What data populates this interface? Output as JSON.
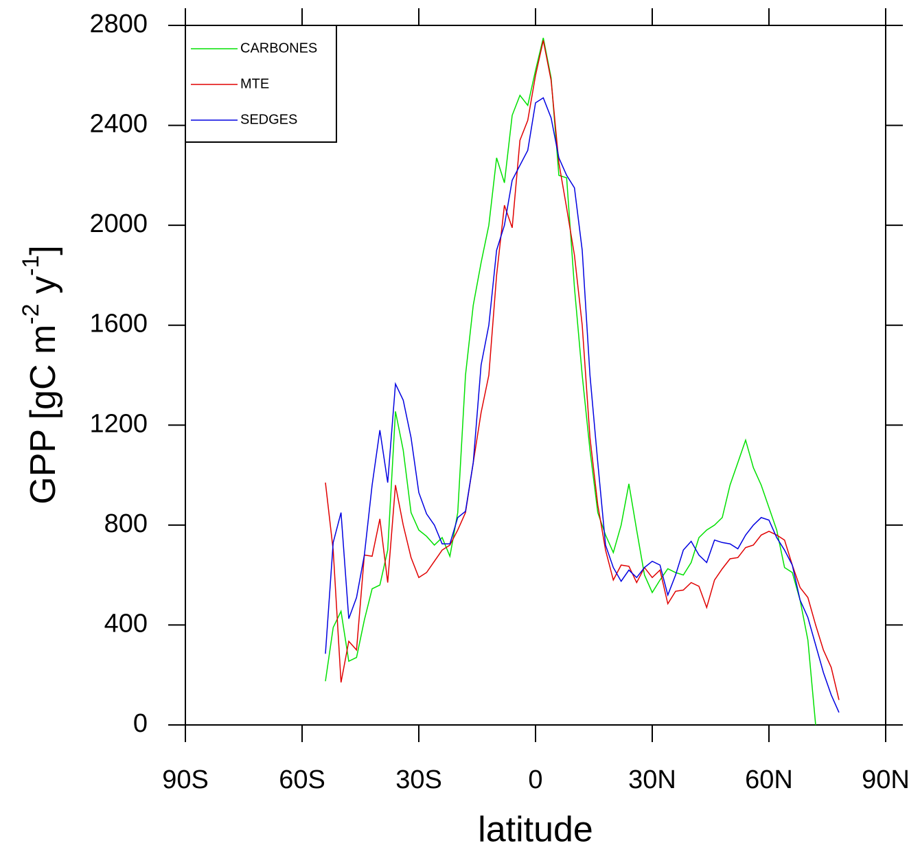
{
  "chart_data": {
    "type": "line",
    "x_label": "latitude",
    "y_label": [
      "GPP [gC m",
      "-2",
      " y",
      "-1",
      "]"
    ],
    "x": [
      -54,
      -52,
      -50,
      -48,
      -46,
      -44,
      -42,
      -40,
      -38,
      -36,
      -34,
      -32,
      -30,
      -28,
      -26,
      -24,
      -22,
      -20,
      -18,
      -16,
      -14,
      -12,
      -10,
      -8,
      -6,
      -4,
      -2,
      0,
      2,
      4,
      6,
      8,
      10,
      12,
      14,
      16,
      18,
      20,
      22,
      24,
      26,
      28,
      30,
      32,
      34,
      36,
      38,
      40,
      42,
      44,
      46,
      48,
      50,
      52,
      54,
      56,
      58,
      60,
      62,
      64,
      66,
      68,
      70,
      72,
      74,
      76,
      78
    ],
    "series": [
      {
        "name": "CARBONES",
        "color": "#00e000",
        "values": [
          175,
          390,
          455,
          255,
          270,
          420,
          545,
          560,
          700,
          1255,
          1100,
          850,
          780,
          755,
          720,
          750,
          675,
          850,
          1400,
          1680,
          1850,
          2000,
          2270,
          2170,
          2440,
          2520,
          2480,
          2620,
          2750,
          2590,
          2200,
          2190,
          1750,
          1400,
          1100,
          850,
          760,
          690,
          800,
          965,
          780,
          600,
          530,
          580,
          625,
          610,
          600,
          650,
          750,
          780,
          800,
          830,
          960,
          1050,
          1140,
          1030,
          960,
          870,
          780,
          630,
          610,
          500,
          340,
          0,
          null,
          null,
          null
        ]
      },
      {
        "name": "MTE",
        "color": "#e00000",
        "values": [
          970,
          700,
          170,
          335,
          300,
          680,
          675,
          825,
          570,
          960,
          800,
          670,
          590,
          610,
          655,
          700,
          720,
          780,
          850,
          1050,
          1250,
          1400,
          1800,
          2080,
          1990,
          2340,
          2420,
          2600,
          2740,
          2580,
          2250,
          2070,
          1880,
          1600,
          1150,
          880,
          700,
          580,
          640,
          635,
          570,
          630,
          590,
          620,
          485,
          535,
          540,
          570,
          555,
          470,
          580,
          625,
          665,
          670,
          710,
          720,
          760,
          775,
          760,
          740,
          640,
          550,
          510,
          400,
          300,
          230,
          100
        ]
      },
      {
        "name": "SEDGES",
        "color": "#0000e0",
        "values": [
          285,
          730,
          850,
          425,
          510,
          680,
          960,
          1180,
          970,
          1365,
          1300,
          1150,
          930,
          845,
          800,
          725,
          725,
          830,
          855,
          1050,
          1440,
          1600,
          1900,
          2000,
          2180,
          2240,
          2300,
          2490,
          2510,
          2430,
          2270,
          2200,
          2150,
          1900,
          1400,
          1050,
          720,
          630,
          575,
          620,
          590,
          630,
          655,
          640,
          520,
          600,
          700,
          735,
          680,
          650,
          740,
          730,
          725,
          705,
          760,
          800,
          830,
          820,
          750,
          700,
          640,
          500,
          430,
          320,
          210,
          120,
          50
        ]
      }
    ],
    "xlim": [
      -90,
      90
    ],
    "xticks": [
      {
        "value": -90,
        "label": "90S"
      },
      {
        "value": -60,
        "label": "60S"
      },
      {
        "value": -30,
        "label": "30S"
      },
      0,
      {
        "value": 30,
        "label": "30N"
      },
      {
        "value": 60,
        "label": "60N"
      },
      {
        "value": 90,
        "label": "90N"
      }
    ],
    "ylim": [
      0,
      2800
    ],
    "yticks": [
      0,
      400,
      800,
      1200,
      1600,
      2000,
      2400,
      2800
    ],
    "legend": "top-left",
    "grid": false
  }
}
